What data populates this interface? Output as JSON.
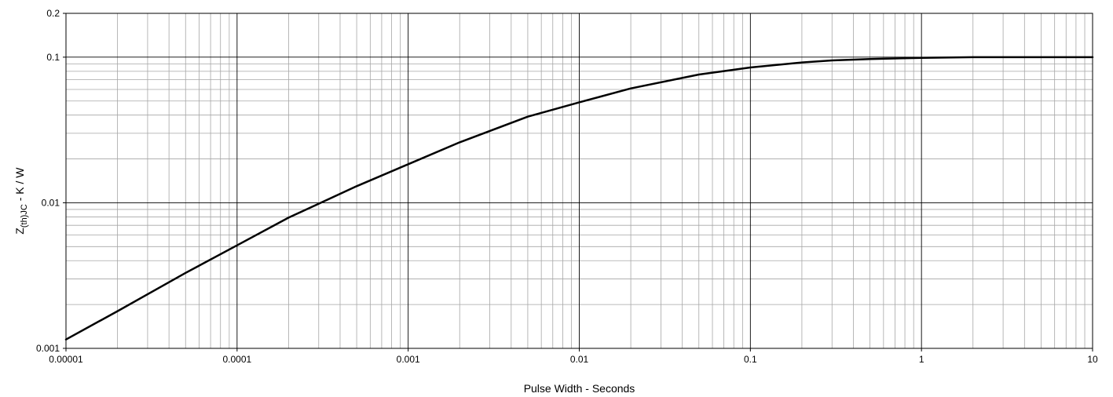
{
  "chart_data": {
    "type": "line",
    "title": "",
    "xlabel": "Pulse Width - Seconds",
    "ylabel": {
      "main": "Z",
      "subscript": "(th)JC",
      "rest": " - K / W"
    },
    "x_scale": "log",
    "y_scale": "log",
    "xlim": [
      1e-05,
      10
    ],
    "ylim": [
      0.001,
      0.2
    ],
    "x_ticks": [
      "0.00001",
      "0.0001",
      "0.001",
      "0.01",
      "0.1",
      "1",
      "10"
    ],
    "y_ticks": [
      "0.001",
      "0.01",
      "0.1",
      "0.2"
    ],
    "grid": true,
    "legend": "none",
    "line_color": "#000000",
    "series": [
      {
        "x": [
          1e-05,
          2e-05,
          5e-05,
          0.0001,
          0.0002,
          0.0005,
          0.001,
          0.002,
          0.005,
          0.01,
          0.02,
          0.05,
          0.1,
          0.2,
          0.3,
          0.5,
          1,
          2,
          5,
          10
        ],
        "y": [
          0.00115,
          0.0018,
          0.0033,
          0.0051,
          0.0079,
          0.013,
          0.0184,
          0.026,
          0.039,
          0.049,
          0.061,
          0.076,
          0.085,
          0.092,
          0.095,
          0.097,
          0.099,
          0.1,
          0.1,
          0.1
        ]
      }
    ]
  }
}
